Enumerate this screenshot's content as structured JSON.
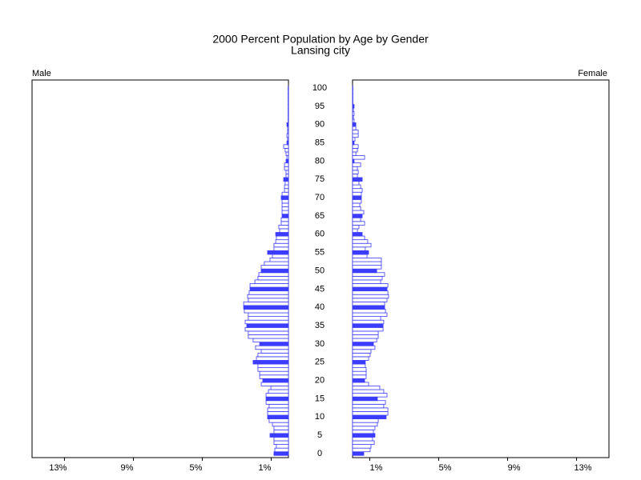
{
  "chart_data": {
    "type": "pyramid",
    "title": "2000 Percent Population by Age by Gender",
    "subtitle": "Lansing city",
    "ages": [
      0,
      1,
      2,
      3,
      4,
      5,
      6,
      7,
      8,
      9,
      10,
      11,
      12,
      13,
      14,
      15,
      16,
      17,
      18,
      19,
      20,
      21,
      22,
      23,
      24,
      25,
      26,
      27,
      28,
      29,
      30,
      31,
      32,
      33,
      34,
      35,
      36,
      37,
      38,
      39,
      40,
      41,
      42,
      43,
      44,
      45,
      46,
      47,
      48,
      49,
      50,
      51,
      52,
      53,
      54,
      55,
      56,
      57,
      58,
      59,
      60,
      61,
      62,
      63,
      64,
      65,
      66,
      67,
      68,
      69,
      70,
      71,
      72,
      73,
      74,
      75,
      76,
      77,
      78,
      79,
      80,
      81,
      82,
      83,
      84,
      85,
      86,
      87,
      88,
      89,
      90,
      91,
      92,
      93,
      94,
      95,
      96,
      97,
      98,
      99,
      100
    ],
    "series": [
      {
        "name": "Male",
        "color": "#3c3cff",
        "values": [
          0.84,
          0.79,
          0.7,
          0.84,
          0.84,
          1.07,
          0.84,
          0.84,
          0.93,
          1.12,
          1.21,
          1.21,
          1.21,
          1.12,
          1.3,
          1.3,
          1.3,
          1.16,
          1.02,
          1.58,
          1.49,
          1.67,
          1.67,
          1.77,
          1.77,
          2.05,
          1.86,
          1.77,
          1.58,
          1.91,
          1.67,
          2.05,
          2.33,
          2.33,
          2.51,
          2.42,
          2.51,
          2.33,
          2.33,
          2.56,
          2.6,
          2.6,
          2.33,
          2.37,
          2.28,
          2.23,
          2.23,
          1.95,
          1.77,
          1.72,
          1.58,
          1.58,
          1.4,
          1.07,
          0.93,
          1.21,
          0.84,
          0.84,
          0.74,
          0.7,
          0.74,
          0.51,
          0.56,
          0.42,
          0.42,
          0.37,
          0.37,
          0.37,
          0.37,
          0.37,
          0.42,
          0.37,
          0.23,
          0.23,
          0.19,
          0.28,
          0.14,
          0.14,
          0.23,
          0.23,
          0.14,
          0.09,
          0.14,
          0.19,
          0.28,
          0.09,
          0.05,
          0.09,
          0.05,
          0.05,
          0.09,
          0.02,
          0.02,
          0.02,
          0.02,
          0.02,
          0.02,
          0.02,
          0.02,
          0.02,
          0.02
        ]
      },
      {
        "name": "Female",
        "color": "#3c3cff",
        "values": [
          0.65,
          1.02,
          1.07,
          1.26,
          1.16,
          1.3,
          1.21,
          1.3,
          1.44,
          1.49,
          1.95,
          2.05,
          2.05,
          1.81,
          1.91,
          1.44,
          2.0,
          1.81,
          1.58,
          0.93,
          0.7,
          0.79,
          0.79,
          0.79,
          0.74,
          0.74,
          0.93,
          1.02,
          1.07,
          1.3,
          1.21,
          1.4,
          1.49,
          1.49,
          1.77,
          1.77,
          1.81,
          1.63,
          2.0,
          1.91,
          1.86,
          1.86,
          2.0,
          2.09,
          2.05,
          2.0,
          2.05,
          1.63,
          1.72,
          1.86,
          1.4,
          1.67,
          1.67,
          1.67,
          0.84,
          0.93,
          0.74,
          1.07,
          0.88,
          0.7,
          0.56,
          0.28,
          0.37,
          0.7,
          0.47,
          0.56,
          0.65,
          0.47,
          0.42,
          0.51,
          0.51,
          0.51,
          0.56,
          0.47,
          0.37,
          0.56,
          0.28,
          0.33,
          0.28,
          0.47,
          0.09,
          0.7,
          0.19,
          0.28,
          0.33,
          0.09,
          0.14,
          0.33,
          0.33,
          0.19,
          0.19,
          0.09,
          0.05,
          0.09,
          0.05,
          0.09,
          0.02,
          0.02,
          0.02,
          0.02,
          0.02
        ]
      }
    ],
    "highlight_every": 5,
    "xlim": [
      0,
      14.88
    ],
    "xticks": [
      {
        "value": 1,
        "label": "1%"
      },
      {
        "value": 5,
        "label": "5%"
      },
      {
        "value": 9,
        "label": "9%"
      },
      {
        "value": 13,
        "label": "13%"
      }
    ],
    "ylim": [
      0,
      100
    ],
    "yticks": [
      0,
      5,
      10,
      15,
      20,
      25,
      30,
      35,
      40,
      45,
      50,
      55,
      60,
      65,
      70,
      75,
      80,
      85,
      90,
      95,
      100
    ]
  }
}
